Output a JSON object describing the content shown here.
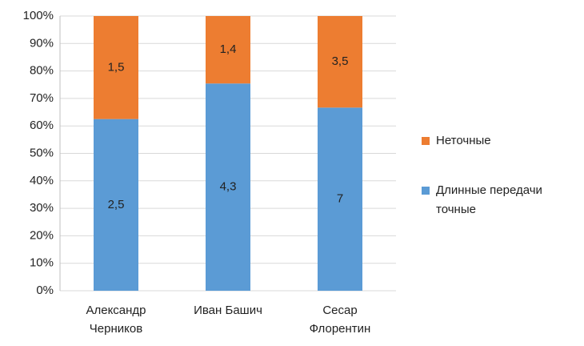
{
  "chart_data": {
    "type": "bar",
    "stacked": "percent",
    "categories": [
      "Александр Черников",
      "Иван Башич",
      "Сесар Флорентин"
    ],
    "series": [
      {
        "name": "Длинные передачи точные",
        "color": "#5b9bd5",
        "values": [
          2.5,
          4.3,
          7
        ],
        "value_labels": [
          "2,5",
          "4,3",
          "7"
        ]
      },
      {
        "name": "Неточные",
        "color": "#ed7d31",
        "values": [
          1.5,
          1.4,
          3.5
        ],
        "value_labels": [
          "1,5",
          "1,4",
          "3,5"
        ]
      }
    ],
    "ylim": [
      0,
      100
    ],
    "yticks": [
      {
        "value": 0,
        "label": "0%"
      },
      {
        "value": 10,
        "label": "10%"
      },
      {
        "value": 20,
        "label": "20%"
      },
      {
        "value": 30,
        "label": "30%"
      },
      {
        "value": 40,
        "label": "40%"
      },
      {
        "value": 50,
        "label": "50%"
      },
      {
        "value": 60,
        "label": "60%"
      },
      {
        "value": 70,
        "label": "70%"
      },
      {
        "value": 80,
        "label": "80%"
      },
      {
        "value": 90,
        "label": "90%"
      },
      {
        "value": 100,
        "label": "100%"
      }
    ],
    "grid": true,
    "legend": "right"
  }
}
